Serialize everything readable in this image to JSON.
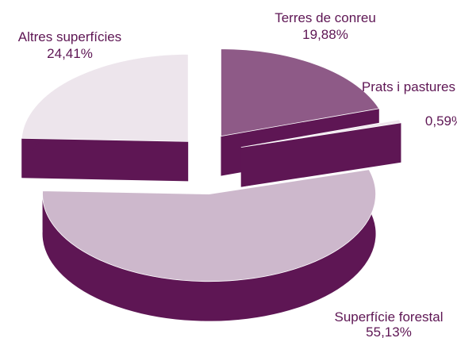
{
  "chart_data": {
    "type": "pie3d",
    "categories": [
      "Terres de conreu",
      "Prats i pastures",
      "Superfície forestal",
      "Altres superfícies"
    ],
    "values": [
      19.88,
      0.59,
      55.13,
      24.41
    ],
    "value_labels": [
      "19,88%",
      "0,59%",
      "55,13%",
      "24,41%"
    ],
    "colors": [
      "#8e5a87",
      "#f0e6ee",
      "#cdb8cc",
      "#ede5ec"
    ],
    "side_color": "#5e1654"
  }
}
